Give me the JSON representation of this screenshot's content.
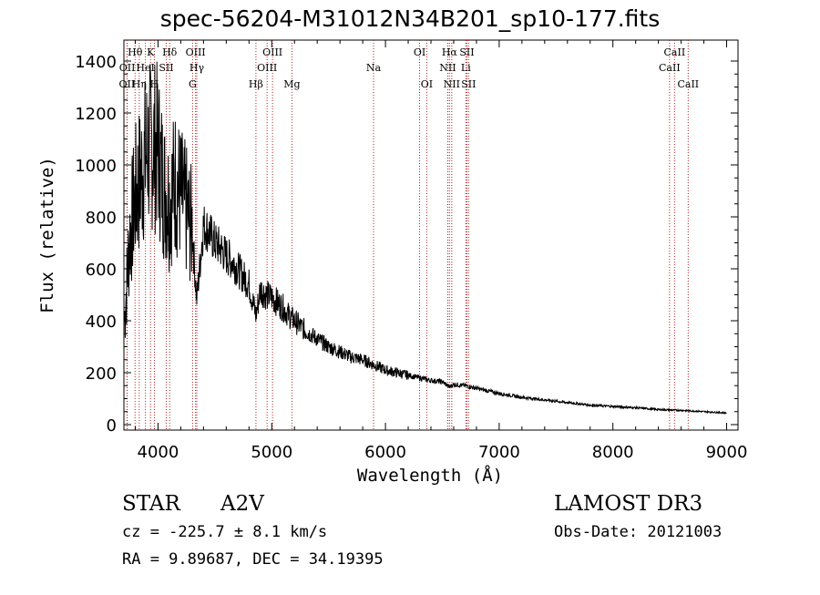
{
  "header": {
    "title": "spec-56204-M31012N34B201_sp10-177.fits"
  },
  "chart_data": {
    "type": "line",
    "title": "spec-56204-M31012N34B201_sp10-177.fits",
    "xlabel": "Wavelength (Å)",
    "ylabel": "Flux (relative)",
    "xlim": [
      3700,
      9100
    ],
    "ylim": [
      0,
      1400
    ],
    "x_ticks": [
      4000,
      5000,
      6000,
      7000,
      8000,
      9000
    ],
    "x_tick_labels": [
      "4000",
      "5000",
      "6000",
      "7000",
      "8000",
      "9000"
    ],
    "y_ticks": [
      0,
      200,
      400,
      600,
      800,
      1000,
      1200,
      1400
    ],
    "y_tick_labels": [
      "0",
      "200",
      "400",
      "600",
      "800",
      "1000",
      "1200",
      "1400"
    ],
    "series": [
      {
        "name": "flux",
        "x": [
          3705,
          3750,
          3800,
          3850,
          3900,
          3950,
          4000,
          4050,
          4100,
          4150,
          4200,
          4250,
          4300,
          4340,
          4400,
          4450,
          4500,
          4550,
          4600,
          4650,
          4700,
          4750,
          4800,
          4861,
          4900,
          4950,
          5000,
          5050,
          5100,
          5150,
          5200,
          5300,
          5400,
          5500,
          5600,
          5700,
          5800,
          5900,
          6000,
          6100,
          6200,
          6300,
          6400,
          6500,
          6563,
          6600,
          6700,
          6800,
          6900,
          7000,
          7200,
          7400,
          7600,
          7800,
          8000,
          8200,
          8400,
          8600,
          8800,
          9000
        ],
        "y": [
          400,
          720,
          880,
          960,
          1050,
          1080,
          1060,
          920,
          860,
          940,
          880,
          820,
          750,
          480,
          770,
          740,
          700,
          680,
          650,
          630,
          600,
          570,
          540,
          420,
          520,
          500,
          490,
          470,
          450,
          420,
          400,
          360,
          330,
          300,
          280,
          260,
          250,
          230,
          210,
          200,
          190,
          180,
          170,
          165,
          145,
          155,
          150,
          140,
          130,
          120,
          105,
          95,
          85,
          75,
          70,
          65,
          58,
          55,
          50,
          45
        ]
      }
    ],
    "lines": [
      {
        "name": "OII",
        "x": 3727,
        "row": 3
      },
      {
        "name": "OII",
        "x": 3729,
        "row": 2
      },
      {
        "name": "Hθ",
        "x": 3798,
        "row": 1
      },
      {
        "name": "Hη",
        "x": 3835,
        "row": 3
      },
      {
        "name": "HeI",
        "x": 3889,
        "row": 2
      },
      {
        "name": "K",
        "x": 3934,
        "row": 1
      },
      {
        "name": "H",
        "x": 3968,
        "row": 3
      },
      {
        "name": "SII",
        "x": 4072,
        "row": 2
      },
      {
        "name": "Hδ",
        "x": 4102,
        "row": 1
      },
      {
        "name": "OIII",
        "x": 4330,
        "row": 1
      },
      {
        "name": "G",
        "x": 4304,
        "row": 3
      },
      {
        "name": "Hγ",
        "x": 4341,
        "row": 2
      },
      {
        "name": "Hβ",
        "x": 4861,
        "row": 3
      },
      {
        "name": "OIII",
        "x": 4959,
        "row": 2
      },
      {
        "name": "OIII",
        "x": 5007,
        "row": 1
      },
      {
        "name": "Mg",
        "x": 5177,
        "row": 3
      },
      {
        "name": "Na",
        "x": 5895,
        "row": 2
      },
      {
        "name": "OI",
        "x": 6300,
        "row": 1
      },
      {
        "name": "OI",
        "x": 6363,
        "row": 3
      },
      {
        "name": "Hα",
        "x": 6563,
        "row": 1
      },
      {
        "name": "NII",
        "x": 6548,
        "row": 2
      },
      {
        "name": "NII",
        "x": 6583,
        "row": 3
      },
      {
        "name": "SII",
        "x": 6716,
        "row": 1
      },
      {
        "name": "Li",
        "x": 6707,
        "row": 2
      },
      {
        "name": "SII",
        "x": 6731,
        "row": 3
      },
      {
        "name": "CaII",
        "x": 8542,
        "row": 1
      },
      {
        "name": "CaII",
        "x": 8498,
        "row": 2
      },
      {
        "name": "CaII",
        "x": 8662,
        "row": 3
      }
    ]
  },
  "footer": {
    "object_class": "STAR",
    "subclass": "A2V",
    "survey": "LAMOST DR3",
    "cz": "cz = -225.7 ± 8.1 km/s",
    "obs_date": "Obs-Date: 20121003",
    "coords": "RA =   9.89687, DEC =  34.19395"
  },
  "colors": {
    "line_marker": "#b22222",
    "spectrum": "#000000",
    "axis": "#000000"
  }
}
